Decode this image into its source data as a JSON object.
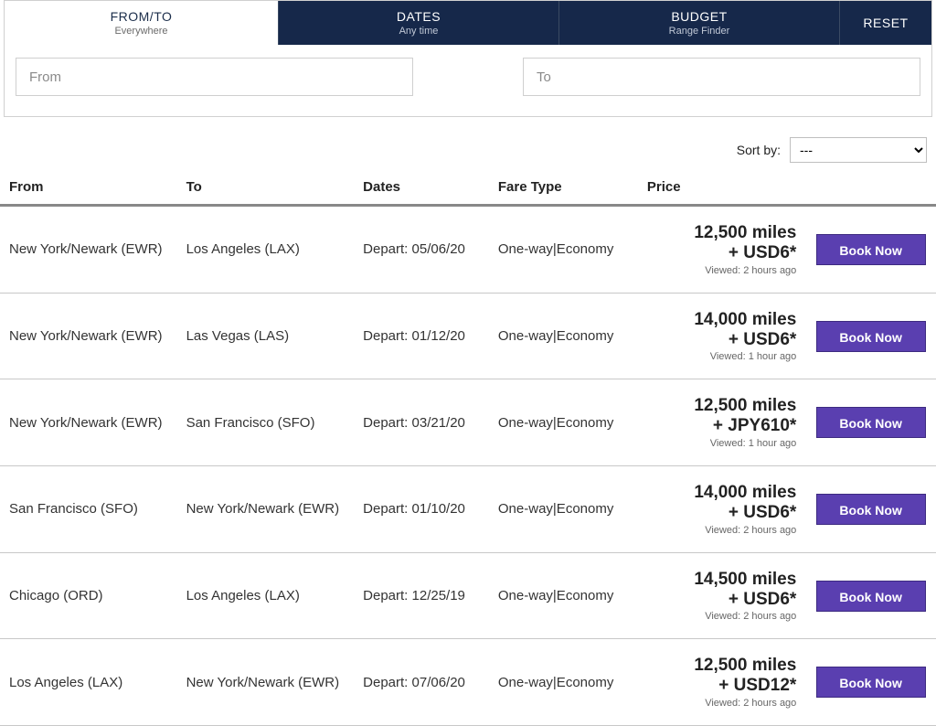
{
  "tabs": {
    "fromto": {
      "title": "FROM/TO",
      "sub": "Everywhere"
    },
    "dates": {
      "title": "DATES",
      "sub": "Any time"
    },
    "budget": {
      "title": "BUDGET",
      "sub": "Range Finder"
    },
    "reset": {
      "title": "RESET"
    }
  },
  "inputs": {
    "from_placeholder": "From",
    "to_placeholder": "To"
  },
  "sort": {
    "label": "Sort by:",
    "selected": "---"
  },
  "columns": {
    "from": "From",
    "to": "To",
    "dates": "Dates",
    "fare": "Fare Type",
    "price": "Price"
  },
  "book_label": "Book Now",
  "rows": [
    {
      "from": "New York/Newark (EWR)",
      "to": "Los Angeles (LAX)",
      "dates": "Depart: 05/06/20",
      "fare": "One-way|Economy",
      "miles": "12,500 miles",
      "fee": "+ USD6*",
      "viewed": "Viewed: 2 hours ago"
    },
    {
      "from": "New York/Newark (EWR)",
      "to": "Las Vegas (LAS)",
      "dates": "Depart: 01/12/20",
      "fare": "One-way|Economy",
      "miles": "14,000 miles",
      "fee": "+ USD6*",
      "viewed": "Viewed: 1 hour ago"
    },
    {
      "from": "New York/Newark (EWR)",
      "to": "San Francisco (SFO)",
      "dates": "Depart: 03/21/20",
      "fare": "One-way|Economy",
      "miles": "12,500 miles",
      "fee": "+ JPY610*",
      "viewed": "Viewed: 1 hour ago"
    },
    {
      "from": "San Francisco (SFO)",
      "to": "New York/Newark (EWR)",
      "dates": "Depart: 01/10/20",
      "fare": "One-way|Economy",
      "miles": "14,000 miles",
      "fee": "+ USD6*",
      "viewed": "Viewed: 2 hours ago"
    },
    {
      "from": "Chicago (ORD)",
      "to": "Los Angeles (LAX)",
      "dates": "Depart: 12/25/19",
      "fare": "One-way|Economy",
      "miles": "14,500 miles",
      "fee": "+ USD6*",
      "viewed": "Viewed: 2 hours ago"
    },
    {
      "from": "Los Angeles (LAX)",
      "to": "New York/Newark (EWR)",
      "dates": "Depart: 07/06/20",
      "fare": "One-way|Economy",
      "miles": "12,500 miles",
      "fee": "+ USD12*",
      "viewed": "Viewed: 2 hours ago"
    }
  ],
  "colors": {
    "tab_dark_bg": "#16284a",
    "tab_active_text": "#1b2d4a",
    "button_bg": "#5a3fb0",
    "button_border": "#3d2a80",
    "header_underline": "#888888",
    "row_divider": "#c8c8c8"
  }
}
